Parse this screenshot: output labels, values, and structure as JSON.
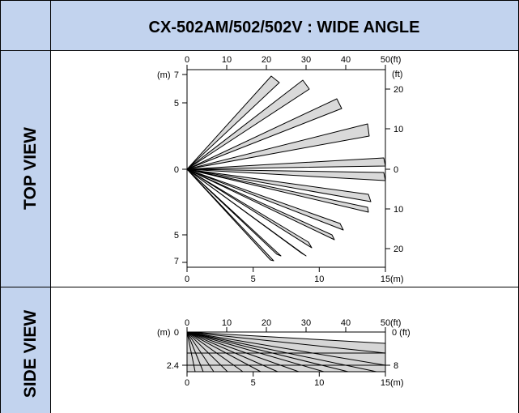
{
  "header": {
    "title": "CX-502AM/502/502V : WIDE ANGLE"
  },
  "row_labels": {
    "top": "TOP VIEW",
    "side": "SIDE VIEW"
  },
  "top_view": {
    "x_axis_ft": {
      "ticks": [
        "0",
        "10",
        "20",
        "30",
        "40",
        "50"
      ],
      "unit": "(ft)"
    },
    "x_axis_m": {
      "ticks": [
        "0",
        "5",
        "10",
        "15"
      ],
      "unit": "(m)"
    },
    "y_axis_m": {
      "unit": "(m)",
      "ticks": [
        "7",
        "5",
        "0",
        "5",
        "7"
      ]
    },
    "y_axis_ft": {
      "unit": "(ft)",
      "ticks": [
        "20",
        "10",
        "0",
        "10",
        "20"
      ]
    }
  },
  "side_view": {
    "x_axis_ft": {
      "ticks": [
        "0",
        "10",
        "20",
        "30",
        "40",
        "50"
      ],
      "unit": "(ft)"
    },
    "x_axis_m": {
      "ticks": [
        "0",
        "5",
        "10",
        "15"
      ],
      "unit": "(m)"
    },
    "y_axis_m": {
      "unit": "(m)",
      "ticks": [
        "0",
        "2.4"
      ]
    },
    "y_axis_ft": {
      "top_label": "0 (ft)",
      "ticks": [
        "8"
      ]
    }
  },
  "colors": {
    "header_bg": "#c2d3ee",
    "zone_fill": "#d9d9d9",
    "border": "#000000"
  }
}
